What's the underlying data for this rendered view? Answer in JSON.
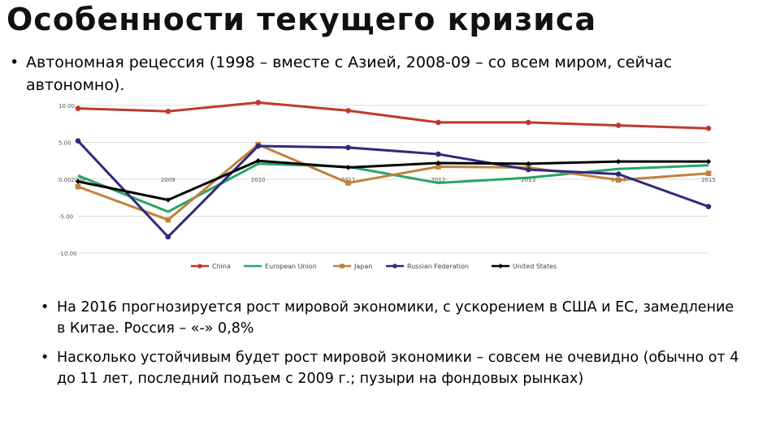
{
  "slide": {
    "title": "Особенности текущего кризиса",
    "bullet1": "Автономная рецессия (1998 – вместе с Азией, 2008-09 – со всем миром, сейчас автономно).",
    "bullet2": "На 2016 прогнозируется рост мировой экономики, с ускорением в США и ЕС, замедление в Китае. Россия – «-» 0,8%",
    "bullet3": "Насколько устойчивым будет рост мировой экономики – совсем не очевидно (обычно от 4 до 11 лет, последний подъем с 2009 г.; пузыри на фондовых рынках)",
    "bullet_symbol": "•"
  },
  "chart_data": {
    "type": "line",
    "title": "",
    "xlabel": "",
    "ylabel": "",
    "categories": [
      "2008",
      "2009",
      "2010",
      "2011",
      "2012",
      "2013",
      "2014",
      "2015"
    ],
    "y_ticks": [
      "10.00",
      "5.00",
      "0.00",
      "-5.00",
      "-10.00"
    ],
    "ylim": [
      -10,
      10
    ],
    "grid": true,
    "legend_position": "bottom",
    "series": [
      {
        "name": "China",
        "color": "#c0392b",
        "marker": "circle",
        "values": [
          9.6,
          9.2,
          10.4,
          9.3,
          7.7,
          7.7,
          7.3,
          6.9
        ]
      },
      {
        "name": "European Union",
        "color": "#27a567",
        "marker": "none",
        "values": [
          0.5,
          -4.4,
          2.1,
          1.7,
          -0.5,
          0.2,
          1.4,
          1.9
        ]
      },
      {
        "name": "Japan",
        "color": "#c0823a",
        "marker": "square",
        "values": [
          -1.0,
          -5.5,
          4.7,
          -0.5,
          1.7,
          1.6,
          -0.1,
          0.8
        ]
      },
      {
        "name": "Russian Federation",
        "color": "#2e2a7e",
        "marker": "circle",
        "values": [
          5.2,
          -7.8,
          4.5,
          4.3,
          3.4,
          1.3,
          0.7,
          -3.7
        ]
      },
      {
        "name": "United States",
        "color": "#000000",
        "marker": "diamond",
        "values": [
          -0.3,
          -2.8,
          2.5,
          1.6,
          2.2,
          2.1,
          2.4,
          2.4
        ]
      }
    ]
  }
}
